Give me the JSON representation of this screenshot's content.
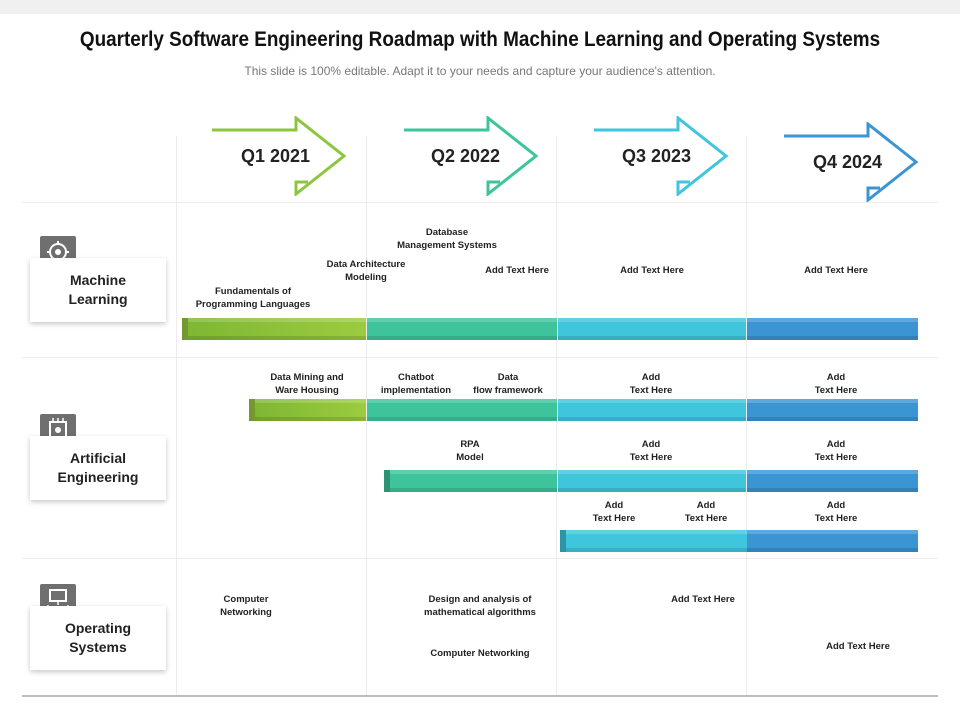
{
  "header": {
    "title": "Quarterly Software Engineering Roadmap with Machine Learning and Operating Systems",
    "subtitle": "This slide is 100% editable. Adapt it to your needs and capture your audience's attention."
  },
  "quarters": [
    "Q1 2021",
    "Q2 2022",
    "Q3 2023",
    "Q4 2024"
  ],
  "colors": {
    "q1": "#8cc63f",
    "q2": "#3ec49b",
    "q3": "#3fc6dc",
    "q4": "#3b95d3",
    "icon": "#6f6f6f"
  },
  "rows": {
    "ml": {
      "label": "Machine\nLearning",
      "icon": "brain-gear-icon",
      "items": [
        "Database\nManagement Systems",
        "Data Architecture\nModeling",
        "Add Text Here",
        "Fundamentals of\nProgramming Languages",
        "Add Text Here",
        "Add Text Here"
      ]
    },
    "ai": {
      "label": "Artificial\nEngineering",
      "icon": "chip-gear-icon",
      "items": [
        "Data Mining and\nWare Housing",
        "Chatbot\nimplementation",
        "Data\nflow framework",
        "Add\nText Here",
        "Add\nText Here",
        "RPA\nModel",
        "Add\nText Here",
        "Add\nText Here",
        "Add\nText Here",
        "Add\nText Here",
        "Add\nText Here"
      ]
    },
    "os": {
      "label": "Operating\nSystems",
      "icon": "computer-network-icon",
      "items": [
        "Computer\nNetworking",
        "Design and analysis of\nmathematical  algorithms",
        "Add Text Here",
        "Computer Networking",
        "Add Text Here"
      ]
    }
  }
}
